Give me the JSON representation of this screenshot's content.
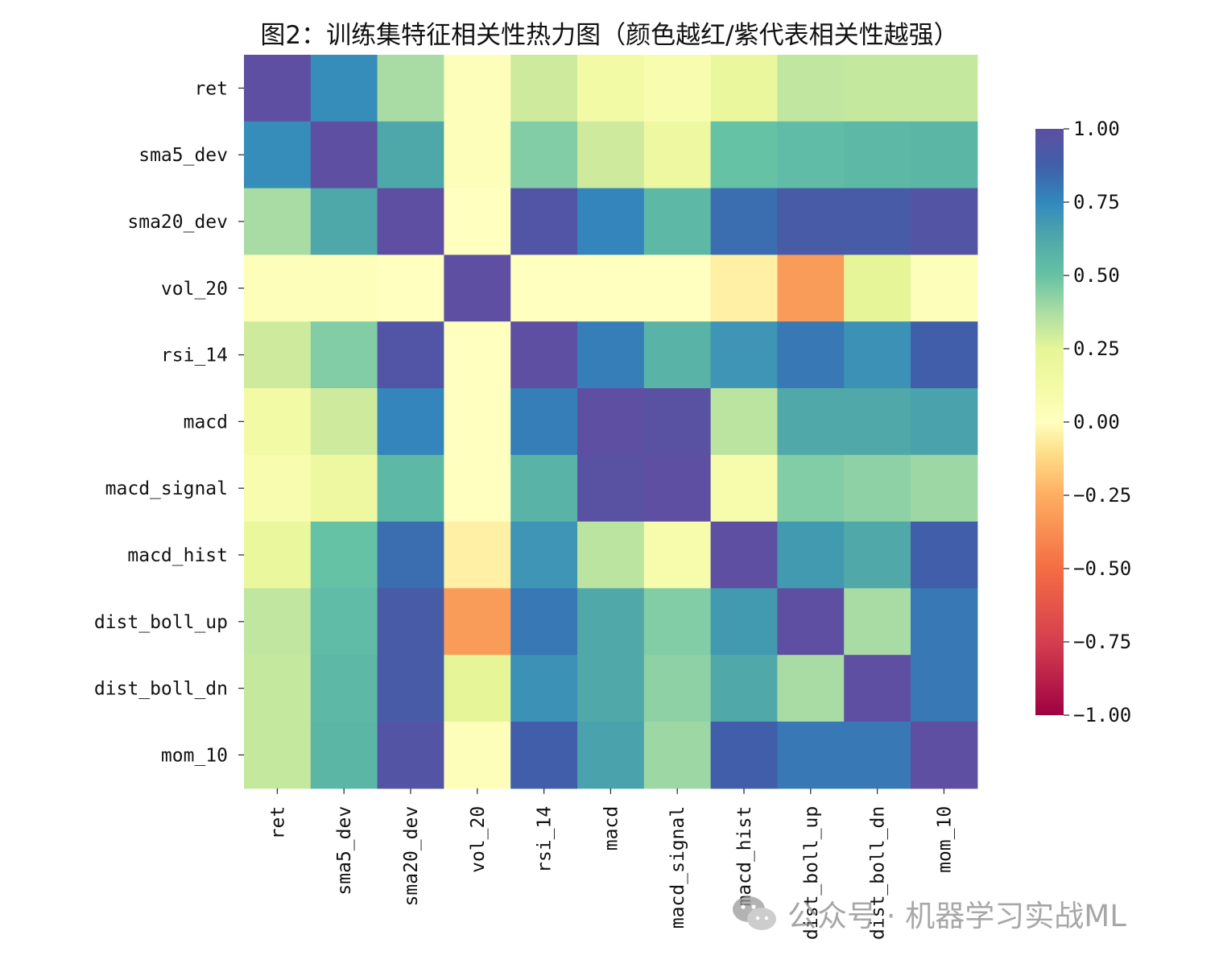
{
  "chart_data": {
    "type": "heatmap",
    "title": "图2：训练集特征相关性热力图（颜色越红/紫代表相关性越强）",
    "row_labels": [
      "ret",
      "sma5_dev",
      "sma20_dev",
      "vol_20",
      "rsi_14",
      "macd",
      "macd_signal",
      "macd_hist",
      "dist_boll_up",
      "dist_boll_dn",
      "mom_10"
    ],
    "col_labels": [
      "ret",
      "sma5_dev",
      "sma20_dev",
      "vol_20",
      "rsi_14",
      "macd",
      "macd_signal",
      "macd_hist",
      "dist_boll_up",
      "dist_boll_dn",
      "mom_10"
    ],
    "values": [
      [
        1.0,
        0.73,
        0.38,
        0.02,
        0.3,
        0.13,
        0.07,
        0.2,
        0.33,
        0.32,
        0.32
      ],
      [
        0.73,
        1.0,
        0.63,
        0.02,
        0.45,
        0.3,
        0.17,
        0.5,
        0.53,
        0.55,
        0.56
      ],
      [
        0.38,
        0.63,
        1.0,
        0.0,
        0.95,
        0.76,
        0.55,
        0.83,
        0.91,
        0.91,
        0.96
      ],
      [
        0.02,
        0.02,
        0.0,
        1.0,
        0.0,
        0.0,
        0.0,
        -0.05,
        -0.32,
        0.25,
        0.02
      ],
      [
        0.3,
        0.45,
        0.95,
        0.0,
        1.0,
        0.78,
        0.57,
        0.7,
        0.8,
        0.71,
        0.88
      ],
      [
        0.13,
        0.3,
        0.76,
        0.0,
        0.78,
        1.0,
        0.98,
        0.34,
        0.62,
        0.62,
        0.65
      ],
      [
        0.07,
        0.17,
        0.55,
        0.0,
        0.57,
        0.98,
        1.0,
        0.08,
        0.45,
        0.43,
        0.4
      ],
      [
        0.2,
        0.5,
        0.83,
        -0.05,
        0.7,
        0.34,
        0.08,
        1.0,
        0.68,
        0.62,
        0.88
      ],
      [
        0.33,
        0.53,
        0.91,
        -0.32,
        0.8,
        0.62,
        0.45,
        0.68,
        1.0,
        0.38,
        0.8
      ],
      [
        0.32,
        0.55,
        0.91,
        0.25,
        0.71,
        0.62,
        0.43,
        0.62,
        0.38,
        1.0,
        0.8
      ],
      [
        0.32,
        0.56,
        0.96,
        0.02,
        0.88,
        0.65,
        0.4,
        0.88,
        0.8,
        0.8,
        1.0
      ]
    ],
    "vmin": -1.0,
    "vmax": 1.0,
    "colormap": "Spectral",
    "colorbar_ticks": [
      "1.00",
      "0.75",
      "0.50",
      "0.25",
      "0.00",
      "−0.25",
      "−0.50",
      "−0.75",
      "−1.00"
    ],
    "colorbar_tick_values": [
      1.0,
      0.75,
      0.5,
      0.25,
      0.0,
      -0.25,
      -0.5,
      -0.75,
      -1.0
    ],
    "colormap_stops": [
      [
        -1.0,
        "#9e0142"
      ],
      [
        -0.75,
        "#d53e4f"
      ],
      [
        -0.5,
        "#f46d43"
      ],
      [
        -0.25,
        "#fdae61"
      ],
      [
        -0.1,
        "#fee08b"
      ],
      [
        0.0,
        "#ffffbf"
      ],
      [
        0.1,
        "#f5fba8"
      ],
      [
        0.25,
        "#e6f598"
      ],
      [
        0.375,
        "#abdda4"
      ],
      [
        0.5,
        "#66c2a5"
      ],
      [
        0.625,
        "#4fa8a8"
      ],
      [
        0.75,
        "#3288bd"
      ],
      [
        0.875,
        "#3f5fa9"
      ],
      [
        1.0,
        "#5e4fa2"
      ]
    ]
  },
  "watermark": {
    "text": "公众号 · 机器学习实战ML",
    "icon": "wechat-icon"
  }
}
